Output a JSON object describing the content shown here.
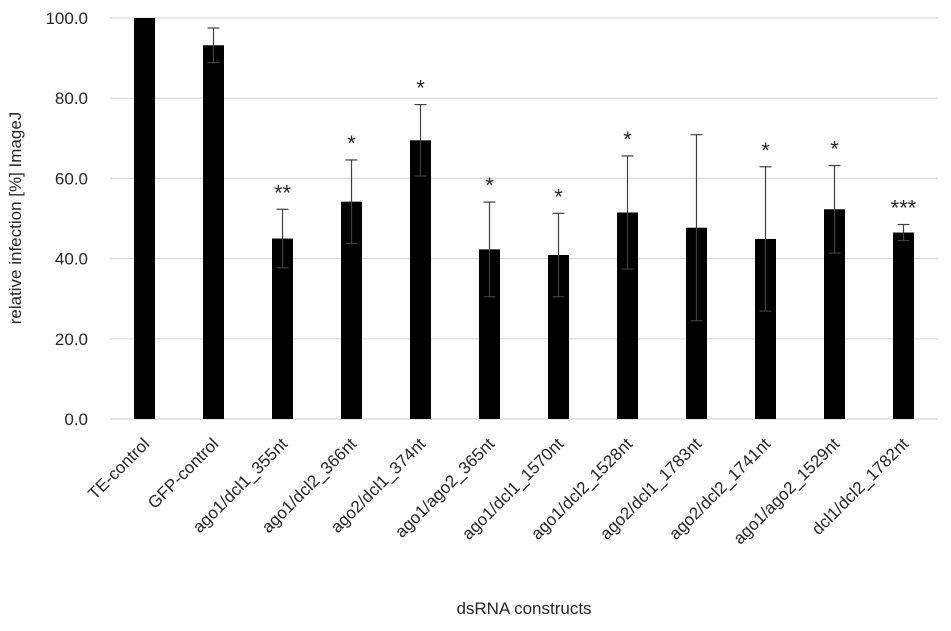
{
  "chart_data": {
    "type": "bar",
    "xlabel": "dsRNA constructs",
    "ylabel": "relative infection [%] ImageJ",
    "ylim": [
      0,
      100
    ],
    "yticks": [
      "0.0",
      "20.0",
      "40.0",
      "60.0",
      "80.0",
      "100.0"
    ],
    "grid": "horizontal",
    "bar_color": "#000000",
    "grid_color": "#d9d9d9",
    "categories": [
      "TE-control",
      "GFP-control",
      "ago1/dcl1_355nt",
      "ago1/dcl2_366nt",
      "ago2/dcl1_374nt",
      "ago1/ago2_365nt",
      "ago1/dcl1_1570nt",
      "ago1/dcl2_1528nt",
      "ago2/dcl1_1783nt",
      "ago2/dcl2_1741nt",
      "ago1/ago2_1529nt",
      "dcl1/dcl2_1782nt"
    ],
    "values": [
      100.0,
      93.2,
      45.0,
      54.2,
      69.5,
      42.3,
      40.9,
      51.5,
      47.7,
      44.9,
      52.3,
      46.5
    ],
    "errors": [
      0,
      4.3,
      7.3,
      10.4,
      8.9,
      11.8,
      10.4,
      14.1,
      23.2,
      18.0,
      10.9,
      2.0
    ],
    "significance": [
      "",
      "",
      "**",
      "*",
      "*",
      "*",
      "*",
      "*",
      "",
      "*",
      "*",
      "***"
    ]
  }
}
